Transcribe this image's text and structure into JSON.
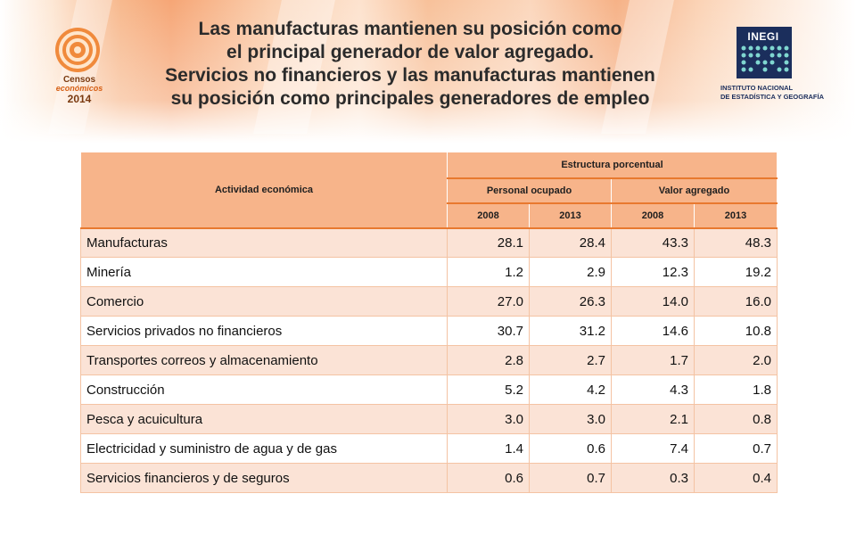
{
  "title": {
    "line1": "Las manufacturas mantienen su posición como",
    "line2": "el principal generador de valor agregado.",
    "line3": "Servicios no financieros y las manufacturas mantienen",
    "line4": "su posición como principales generadores de empleo"
  },
  "logo_left": {
    "line1": "Censos",
    "line2": "económicos",
    "line3": "2014",
    "icon": "censos-spiral-logo"
  },
  "logo_right": {
    "brand": "INEGI",
    "line1": "INSTITUTO NACIONAL",
    "line2": "DE ESTADÍSTICA Y GEOGRAFÍA",
    "icon": "inegi-dots-logo"
  },
  "colors": {
    "header_fill": "#f7b48a",
    "row_odd": "#fbe3d6",
    "row_even": "#ffffff",
    "accent_border": "#e8792f"
  },
  "chart_data": {
    "type": "table",
    "headers": {
      "activity": "Actividad económica",
      "group": "Estructura porcentual",
      "sub1": "Personal ocupado",
      "sub2": "Valor agregado",
      "years": [
        "2008",
        "2013",
        "2008",
        "2013"
      ]
    },
    "rows": [
      {
        "label": "Manufacturas",
        "values": [
          "28.1",
          "28.4",
          "43.3",
          "48.3"
        ]
      },
      {
        "label": "Minería",
        "values": [
          "1.2",
          "2.9",
          "12.3",
          "19.2"
        ]
      },
      {
        "label": "Comercio",
        "values": [
          "27.0",
          "26.3",
          "14.0",
          "16.0"
        ]
      },
      {
        "label": "Servicios privados no financieros",
        "values": [
          "30.7",
          "31.2",
          "14.6",
          "10.8"
        ]
      },
      {
        "label": "Transportes  correos y almacenamiento",
        "values": [
          "2.8",
          "2.7",
          "1.7",
          "2.0"
        ]
      },
      {
        "label": "Construcción",
        "values": [
          "5.2",
          "4.2",
          "4.3",
          "1.8"
        ]
      },
      {
        "label": "Pesca y acuicultura",
        "values": [
          "3.0",
          "3.0",
          "2.1",
          "0.8"
        ]
      },
      {
        "label": "Electricidad y suministro de agua y de gas",
        "values": [
          "1.4",
          "0.6",
          "7.4",
          "0.7"
        ]
      },
      {
        "label": "Servicios financieros y de seguros",
        "values": [
          "0.6",
          "0.7",
          "0.3",
          "0.4"
        ]
      }
    ]
  }
}
